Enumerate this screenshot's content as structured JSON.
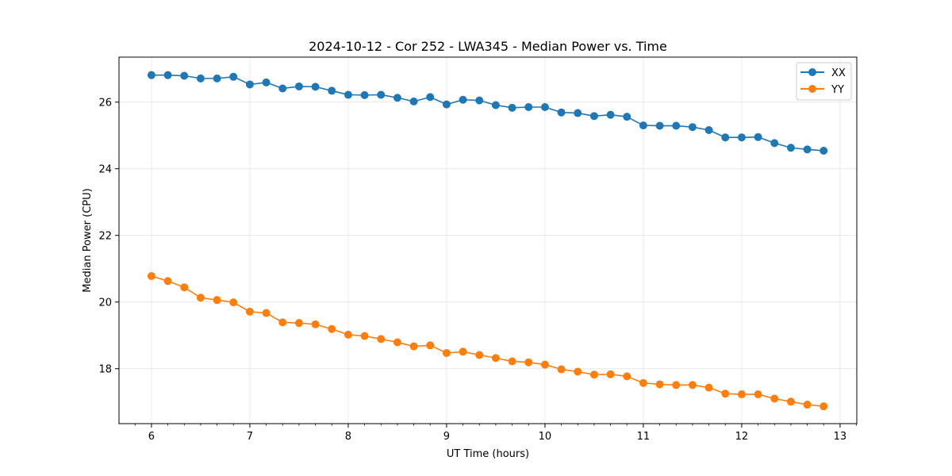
{
  "chart_data": {
    "type": "line",
    "title": "2024-10-12 - Cor 252 - LWA345 - Median Power vs. Time",
    "xlabel": "UT Time (hours)",
    "ylabel": "Median Power (CPU)",
    "xlim": [
      5.67,
      13.17
    ],
    "ylim": [
      16.35,
      27.35
    ],
    "xticks": [
      6,
      7,
      8,
      9,
      10,
      11,
      12,
      13
    ],
    "xtick_labels": [
      "6",
      "7",
      "8",
      "9",
      "10",
      "11",
      "12",
      "13"
    ],
    "yticks": [
      18,
      20,
      22,
      24,
      26
    ],
    "ytick_labels": [
      "18",
      "20",
      "22",
      "24",
      "26"
    ],
    "grid": true,
    "legend_position": "top-right",
    "x": [
      6.0,
      6.1667,
      6.3333,
      6.5,
      6.6667,
      6.8333,
      7.0,
      7.1667,
      7.3333,
      7.5,
      7.6667,
      7.8333,
      8.0,
      8.1667,
      8.3333,
      8.5,
      8.6667,
      8.8333,
      9.0,
      9.1667,
      9.3333,
      9.5,
      9.6667,
      9.8333,
      10.0,
      10.1667,
      10.3333,
      10.5,
      10.6667,
      10.8333,
      11.0,
      11.1667,
      11.3333,
      11.5,
      11.6667,
      11.8333,
      12.0,
      12.1667,
      12.3333,
      12.5,
      12.6667,
      12.8333
    ],
    "series": [
      {
        "name": "XX",
        "color": "#1f77b4",
        "values": [
          26.81,
          26.81,
          26.79,
          26.71,
          26.71,
          26.76,
          26.53,
          26.59,
          26.41,
          26.47,
          26.46,
          26.34,
          26.22,
          26.21,
          26.22,
          26.13,
          26.02,
          26.15,
          25.93,
          26.07,
          26.05,
          25.91,
          25.83,
          25.85,
          25.85,
          25.69,
          25.67,
          25.58,
          25.62,
          25.56,
          25.3,
          25.29,
          25.29,
          25.25,
          25.16,
          24.94,
          24.94,
          24.95,
          24.77,
          24.63,
          24.58,
          24.54
        ]
      },
      {
        "name": "YY",
        "color": "#ff7f0e",
        "values": [
          20.78,
          20.63,
          20.44,
          20.13,
          20.06,
          19.99,
          19.71,
          19.67,
          19.39,
          19.37,
          19.33,
          19.19,
          19.02,
          18.98,
          18.89,
          18.79,
          18.67,
          18.7,
          18.47,
          18.51,
          18.41,
          18.32,
          18.22,
          18.19,
          18.12,
          17.98,
          17.91,
          17.82,
          17.83,
          17.77,
          17.57,
          17.53,
          17.51,
          17.51,
          17.43,
          17.25,
          17.23,
          17.23,
          17.1,
          17.01,
          16.92,
          16.87
        ]
      }
    ]
  }
}
